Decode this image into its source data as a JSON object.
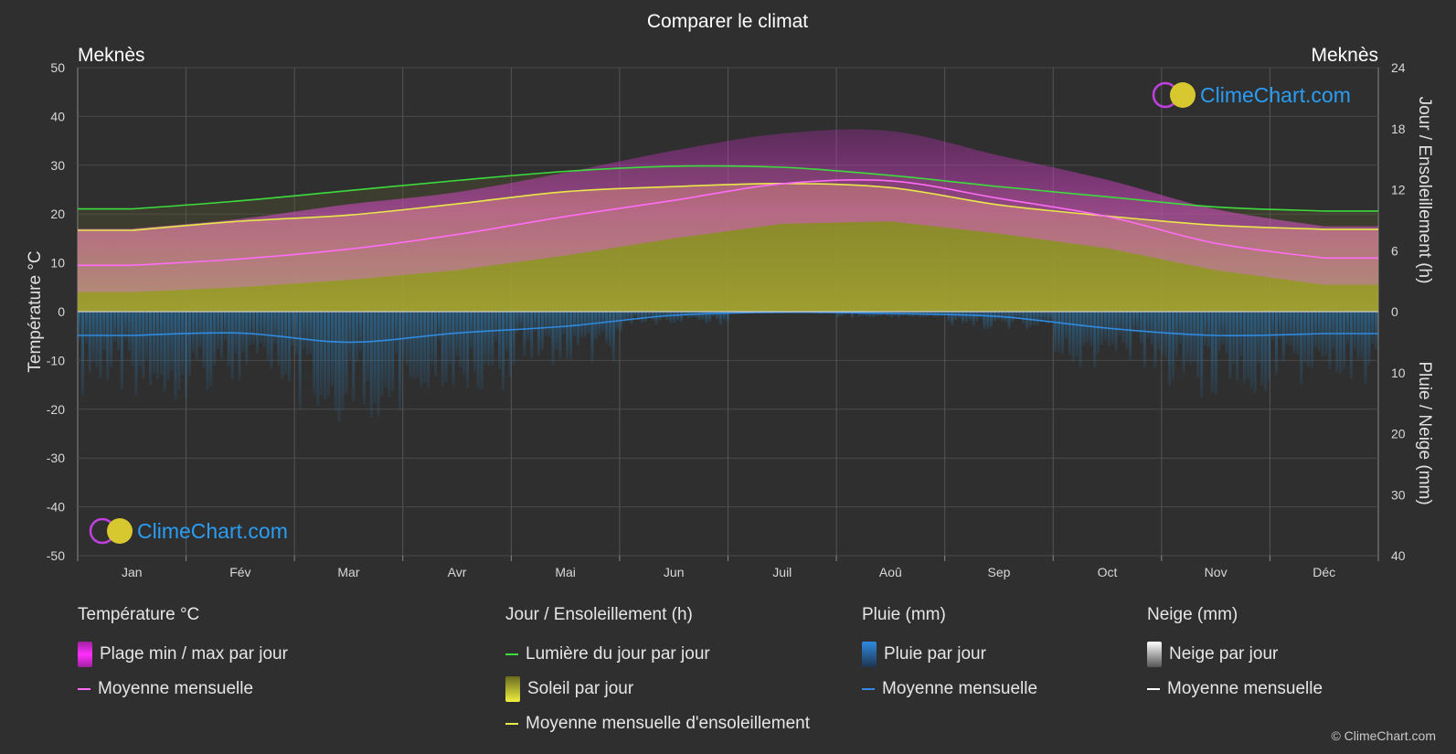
{
  "title": "Comparer le climat",
  "location_left": "Meknès",
  "location_right": "Meknès",
  "watermark": "ClimeChart.com",
  "copyright": "© ClimeChart.com",
  "colors": {
    "background": "#2f2f2f",
    "temp_band": "#d62bd0",
    "temp_avg": "#ff6cf5",
    "daylight": "#3ddc3d",
    "sunshine_fill": "#9c9c2a",
    "sunshine_avg": "#e8e84a",
    "rain_bars": "#2a6f9f",
    "rain_avg": "#2f8ae0",
    "snow_avg": "#ffffff",
    "brand": "#2a9df4"
  },
  "legend": {
    "temperature": {
      "title": "Température °C",
      "items": [
        "Plage min / max par jour",
        "Moyenne mensuelle"
      ]
    },
    "sun": {
      "title": "Jour / Ensoleillement (h)",
      "items": [
        "Lumière du jour par jour",
        "Soleil par jour",
        "Moyenne mensuelle d'ensoleillement"
      ]
    },
    "rain": {
      "title": "Pluie (mm)",
      "items": [
        "Pluie par jour",
        "Moyenne mensuelle"
      ]
    },
    "snow": {
      "title": "Neige (mm)",
      "items": [
        "Neige par jour",
        "Moyenne mensuelle"
      ]
    }
  },
  "chart_data": {
    "type": "line",
    "title": "Comparer le climat",
    "categories": [
      "Jan",
      "Fév",
      "Mar",
      "Avr",
      "Mai",
      "Jun",
      "Juil",
      "Aoû",
      "Sep",
      "Oct",
      "Nov",
      "Déc"
    ],
    "y_left": {
      "label": "Température °C",
      "ylim": [
        -50,
        50
      ],
      "ticks": [
        50,
        40,
        30,
        20,
        10,
        0,
        -10,
        -20,
        -30,
        -40,
        -50
      ]
    },
    "y_right_top": {
      "label": "Jour / Ensoleillement (h)",
      "ylim": [
        0,
        24
      ],
      "ticks": [
        24,
        18,
        12,
        6,
        0
      ]
    },
    "y_right_bottom": {
      "label": "Pluie / Neige (mm)",
      "ylim": [
        0,
        40
      ],
      "ticks": [
        0,
        10,
        20,
        30,
        40
      ]
    },
    "grid": true,
    "series": [
      {
        "name": "Moyenne mensuelle",
        "group": "Température °C",
        "values": [
          9.5,
          10.8,
          12.8,
          15.8,
          19.5,
          22.8,
          26.2,
          26.8,
          23.2,
          19.5,
          14.0,
          11.0
        ]
      },
      {
        "name": "Plage min / max par jour",
        "group": "Température °C",
        "min": [
          4.0,
          5.0,
          6.5,
          8.5,
          11.5,
          15.0,
          18.0,
          18.5,
          16.0,
          13.0,
          8.5,
          5.5
        ],
        "max": [
          17.0,
          19.0,
          22.0,
          24.5,
          28.5,
          33.0,
          36.5,
          37.0,
          32.0,
          27.0,
          21.0,
          17.5
        ]
      },
      {
        "name": "Lumière du jour par jour",
        "group": "Jour / Ensoleillement (h)",
        "values": [
          10.1,
          10.9,
          11.9,
          12.9,
          13.8,
          14.3,
          14.2,
          13.4,
          12.3,
          11.3,
          10.3,
          9.9
        ]
      },
      {
        "name": "Moyenne mensuelle d'ensoleillement",
        "group": "Jour / Ensoleillement (h)",
        "values": [
          8.0,
          8.9,
          9.5,
          10.6,
          11.8,
          12.3,
          12.6,
          12.2,
          10.5,
          9.4,
          8.5,
          8.1
        ]
      },
      {
        "name": "Moyenne mensuelle",
        "group": "Pluie (mm)",
        "values": [
          3.9,
          3.5,
          5.0,
          3.5,
          2.4,
          0.6,
          0.1,
          0.3,
          0.8,
          2.7,
          3.9,
          3.6
        ]
      },
      {
        "name": "Moyenne mensuelle",
        "group": "Neige (mm)",
        "values": [
          0,
          0,
          0,
          0,
          0,
          0,
          0,
          0,
          0,
          0,
          0,
          0
        ]
      }
    ]
  }
}
